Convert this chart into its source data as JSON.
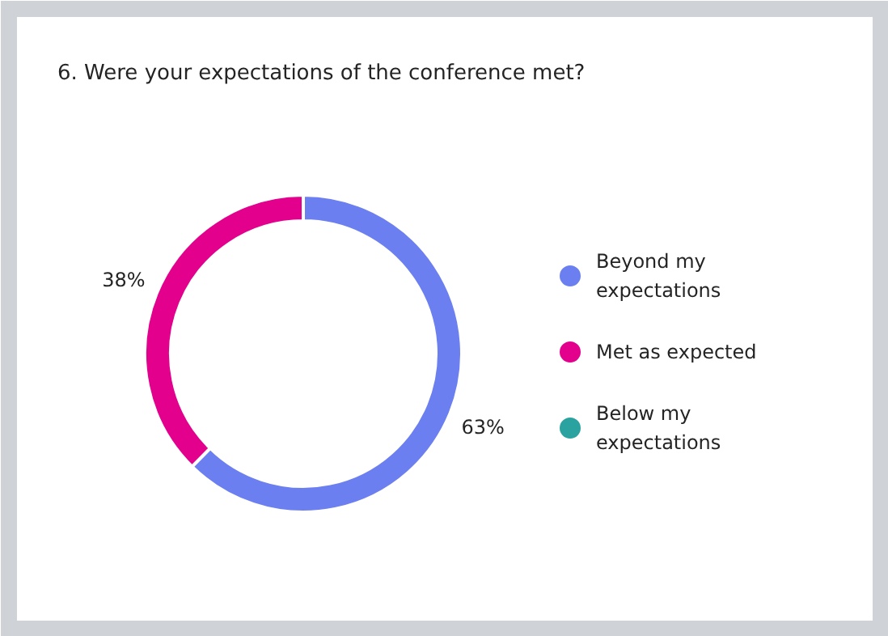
{
  "chart_data": {
    "type": "donut",
    "title": "6. Were your expectations of the conference met?",
    "categories": [
      "Beyond my expectations",
      "Met as expected",
      "Below my expectations"
    ],
    "values": [
      63,
      38,
      0
    ],
    "colors": [
      "#6b7ff0",
      "#e3008c",
      "#2aa3a0"
    ],
    "value_labels": [
      "63%",
      "38%",
      null
    ],
    "legend": "right"
  }
}
